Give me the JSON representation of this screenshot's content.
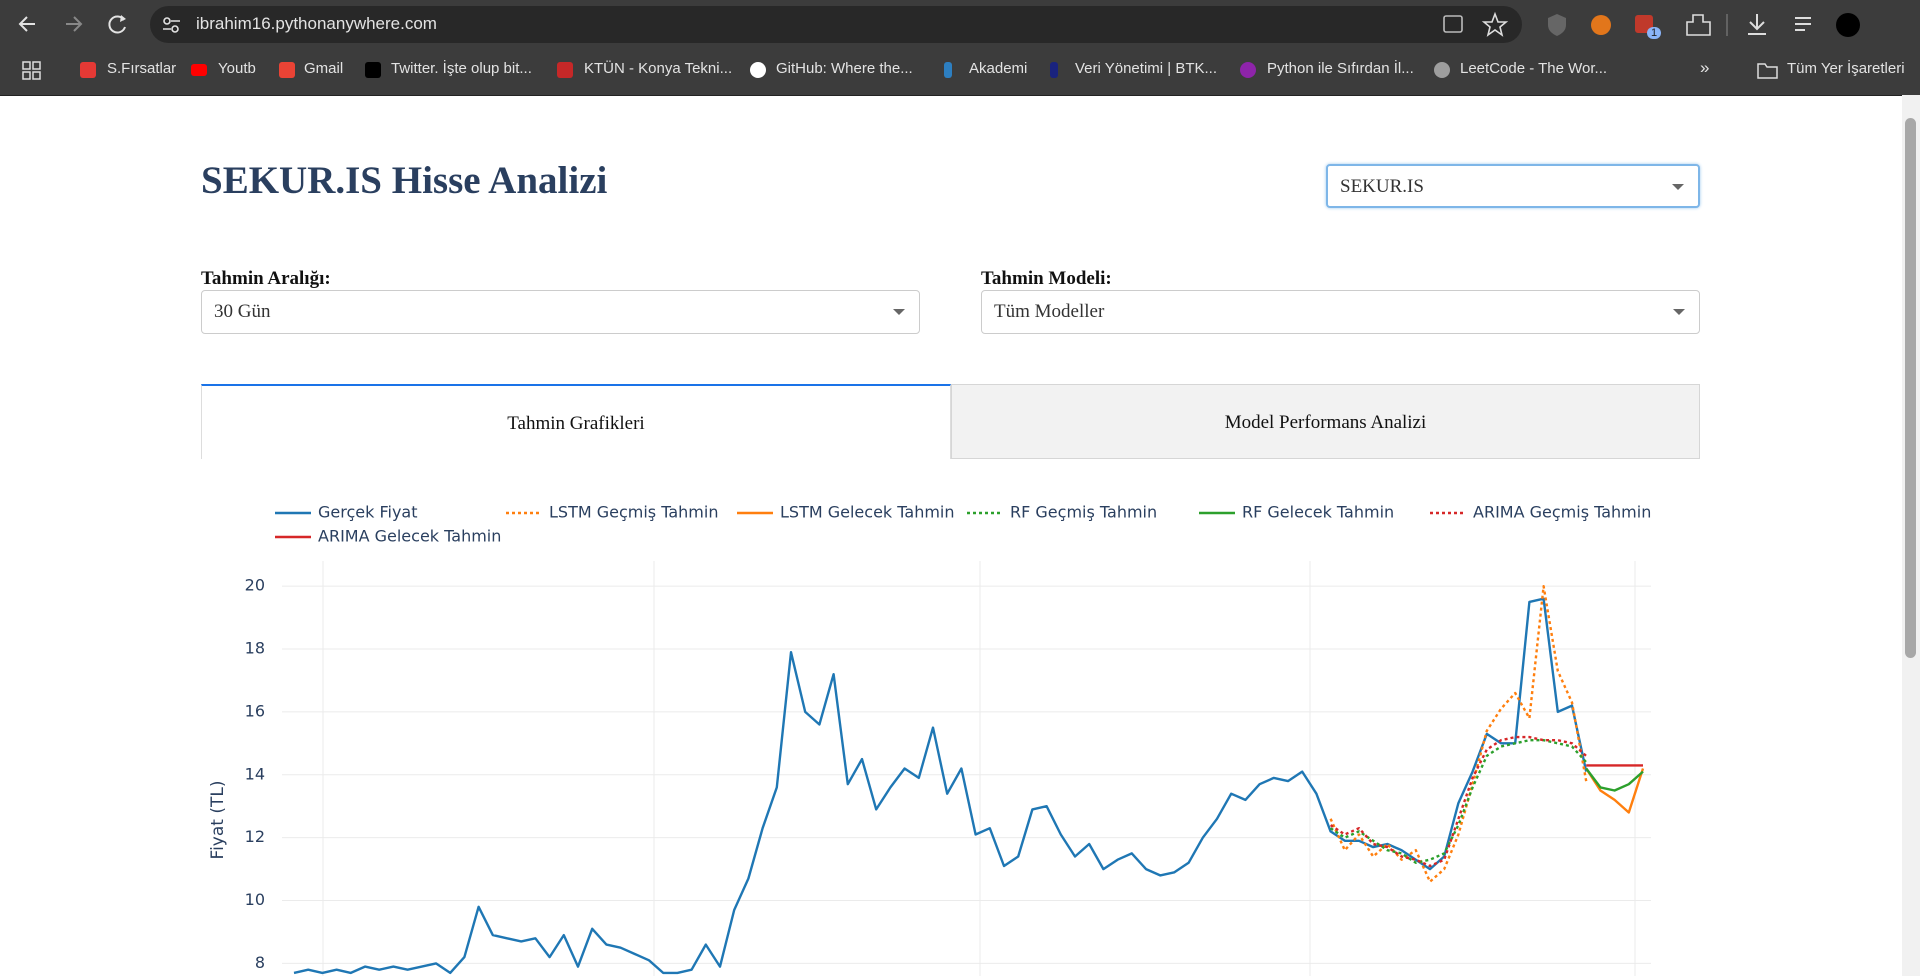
{
  "browser": {
    "url": "ibrahim16.pythonanywhere.com",
    "bookmarks": [
      "S.Fırsatlar",
      "Youtb",
      "Gmail",
      "Twitter. İşte olup bit...",
      "KTÜN - Konya Tekni...",
      "GitHub: Where the...",
      "Akademi",
      "Veri Yönetimi | BTK...",
      "Python ile Sıfırdan İl...",
      "LeetCode - The Wor..."
    ],
    "all_bookmarks": "Tüm Yer İşaretleri",
    "extension_badge": "1"
  },
  "header": {
    "title": "SEKUR.IS Hisse Analizi",
    "stock_select": "SEKUR.IS"
  },
  "controls": {
    "range_label": "Tahmin Aralığı:",
    "range_value": "30 Gün",
    "model_label": "Tahmin Modeli:",
    "model_value": "Tüm Modeller"
  },
  "tabs": [
    "Tahmin Grafikleri",
    "Model Performans Analizi"
  ],
  "chart_data": {
    "type": "line",
    "y_label": "Fiyat (TL)",
    "ylim": [
      7.6,
      20.8
    ],
    "yticks": [
      8,
      10,
      12,
      14,
      16,
      18,
      20
    ],
    "grid": true,
    "legend": "top",
    "categories": [
      null,
      null,
      null,
      null,
      null,
      null,
      null,
      null,
      null,
      null,
      null,
      null,
      null,
      null,
      null,
      null,
      null,
      null,
      null,
      null,
      null,
      null,
      null,
      null,
      null,
      null,
      null,
      null,
      null,
      null,
      null,
      null,
      null,
      null,
      null,
      null,
      null,
      null,
      null,
      null,
      null,
      null,
      null,
      null,
      null,
      null,
      null,
      null,
      null,
      null,
      null,
      null,
      null,
      null,
      null,
      null,
      null,
      null,
      null,
      null,
      null,
      null,
      null,
      null,
      null,
      null,
      null,
      null,
      null,
      null,
      null,
      null,
      null,
      null,
      null,
      null,
      null,
      null,
      null,
      null,
      null,
      null,
      null,
      null,
      null,
      null,
      null,
      null,
      null,
      null,
      null,
      null,
      null,
      null,
      null,
      null
    ],
    "series": [
      {
        "name": "Gerçek Fiyat",
        "color": "#1f77b4",
        "dash": "solid",
        "values": [
          7.7,
          7.8,
          7.7,
          7.8,
          7.7,
          7.9,
          7.8,
          7.9,
          7.8,
          7.9,
          8.0,
          7.7,
          8.2,
          9.8,
          8.9,
          8.8,
          8.7,
          8.8,
          8.2,
          8.9,
          7.9,
          9.1,
          8.6,
          8.5,
          8.3,
          8.1,
          7.7,
          7.7,
          7.8,
          8.6,
          7.9,
          9.7,
          10.7,
          12.3,
          13.6,
          17.9,
          16.0,
          15.6,
          17.2,
          13.7,
          14.5,
          12.9,
          13.6,
          14.2,
          13.9,
          15.5,
          13.4,
          14.2,
          12.1,
          12.3,
          11.1,
          11.4,
          12.9,
          13.0,
          12.1,
          11.4,
          11.8,
          11.0,
          11.3,
          11.5,
          11.0,
          10.8,
          10.9,
          11.2,
          12.0,
          12.6,
          13.4,
          13.2,
          13.7,
          13.9,
          13.8,
          14.1,
          13.4,
          12.2,
          11.9,
          11.9,
          11.7,
          11.8,
          11.6,
          11.3,
          11.0,
          11.4,
          13.1,
          14.1,
          15.3,
          15.0,
          15.0,
          19.5,
          19.6,
          16.0,
          16.2,
          14.1,
          null,
          null,
          null,
          null
        ]
      },
      {
        "name": "LSTM Geçmiş Tahmin",
        "color": "#ff7f0e",
        "dash": "dot",
        "values": [
          null,
          null,
          null,
          null,
          null,
          null,
          null,
          null,
          null,
          null,
          null,
          null,
          null,
          null,
          null,
          null,
          null,
          null,
          null,
          null,
          null,
          null,
          null,
          null,
          null,
          null,
          null,
          null,
          null,
          null,
          null,
          null,
          null,
          null,
          null,
          null,
          null,
          null,
          null,
          null,
          null,
          null,
          null,
          null,
          null,
          null,
          null,
          null,
          null,
          null,
          null,
          null,
          null,
          null,
          null,
          null,
          null,
          null,
          null,
          null,
          null,
          null,
          null,
          null,
          null,
          null,
          null,
          null,
          null,
          null,
          null,
          null,
          null,
          12.6,
          11.6,
          12.1,
          11.4,
          11.8,
          11.3,
          11.6,
          10.6,
          11.0,
          12.1,
          13.7,
          15.4,
          16.1,
          16.6,
          15.8,
          20.0,
          17.3,
          16.3,
          13.8,
          null,
          null,
          null,
          null
        ]
      },
      {
        "name": "LSTM Gelecek Tahmin",
        "color": "#ff7f0e",
        "dash": "solid",
        "values": [
          null,
          null,
          null,
          null,
          null,
          null,
          null,
          null,
          null,
          null,
          null,
          null,
          null,
          null,
          null,
          null,
          null,
          null,
          null,
          null,
          null,
          null,
          null,
          null,
          null,
          null,
          null,
          null,
          null,
          null,
          null,
          null,
          null,
          null,
          null,
          null,
          null,
          null,
          null,
          null,
          null,
          null,
          null,
          null,
          null,
          null,
          null,
          null,
          null,
          null,
          null,
          null,
          null,
          null,
          null,
          null,
          null,
          null,
          null,
          null,
          null,
          null,
          null,
          null,
          null,
          null,
          null,
          null,
          null,
          null,
          null,
          null,
          null,
          null,
          null,
          null,
          null,
          null,
          null,
          null,
          null,
          null,
          null,
          null,
          null,
          null,
          null,
          null,
          null,
          null,
          null,
          14.2,
          13.5,
          13.2,
          12.8,
          14.2
        ]
      },
      {
        "name": "RF Geçmiş Tahmin",
        "color": "#2ca02c",
        "dash": "dot",
        "values": [
          null,
          null,
          null,
          null,
          null,
          null,
          null,
          null,
          null,
          null,
          null,
          null,
          null,
          null,
          null,
          null,
          null,
          null,
          null,
          null,
          null,
          null,
          null,
          null,
          null,
          null,
          null,
          null,
          null,
          null,
          null,
          null,
          null,
          null,
          null,
          null,
          null,
          null,
          null,
          null,
          null,
          null,
          null,
          null,
          null,
          null,
          null,
          null,
          null,
          null,
          null,
          null,
          null,
          null,
          null,
          null,
          null,
          null,
          null,
          null,
          null,
          null,
          null,
          null,
          null,
          null,
          null,
          null,
          null,
          null,
          null,
          null,
          null,
          12.3,
          12.0,
          12.2,
          11.9,
          11.6,
          11.5,
          11.2,
          11.3,
          11.5,
          12.4,
          13.6,
          14.6,
          14.9,
          15.0,
          15.1,
          15.1,
          15.0,
          14.9,
          14.4,
          null,
          null,
          null,
          null
        ]
      },
      {
        "name": "RF Gelecek Tahmin",
        "color": "#2ca02c",
        "dash": "solid",
        "values": [
          null,
          null,
          null,
          null,
          null,
          null,
          null,
          null,
          null,
          null,
          null,
          null,
          null,
          null,
          null,
          null,
          null,
          null,
          null,
          null,
          null,
          null,
          null,
          null,
          null,
          null,
          null,
          null,
          null,
          null,
          null,
          null,
          null,
          null,
          null,
          null,
          null,
          null,
          null,
          null,
          null,
          null,
          null,
          null,
          null,
          null,
          null,
          null,
          null,
          null,
          null,
          null,
          null,
          null,
          null,
          null,
          null,
          null,
          null,
          null,
          null,
          null,
          null,
          null,
          null,
          null,
          null,
          null,
          null,
          null,
          null,
          null,
          null,
          null,
          null,
          null,
          null,
          null,
          null,
          null,
          null,
          null,
          null,
          null,
          null,
          null,
          null,
          null,
          null,
          null,
          null,
          14.2,
          13.6,
          13.5,
          13.7,
          14.1
        ]
      },
      {
        "name": "ARIMA Geçmiş Tahmin",
        "color": "#d62728",
        "dash": "dot",
        "values": [
          null,
          null,
          null,
          null,
          null,
          null,
          null,
          null,
          null,
          null,
          null,
          null,
          null,
          null,
          null,
          null,
          null,
          null,
          null,
          null,
          null,
          null,
          null,
          null,
          null,
          null,
          null,
          null,
          null,
          null,
          null,
          null,
          null,
          null,
          null,
          null,
          null,
          null,
          null,
          null,
          null,
          null,
          null,
          null,
          null,
          null,
          null,
          null,
          null,
          null,
          null,
          null,
          null,
          null,
          null,
          null,
          null,
          null,
          null,
          null,
          null,
          null,
          null,
          null,
          null,
          null,
          null,
          null,
          null,
          null,
          null,
          null,
          null,
          12.4,
          12.1,
          12.3,
          11.8,
          11.7,
          11.4,
          11.3,
          11.1,
          11.3,
          12.6,
          13.9,
          14.8,
          15.1,
          15.2,
          15.2,
          15.1,
          15.1,
          15.0,
          14.6,
          null,
          null,
          null,
          null
        ]
      },
      {
        "name": "ARIMA Gelecek Tahmin",
        "color": "#d62728",
        "dash": "solid",
        "values": [
          null,
          null,
          null,
          null,
          null,
          null,
          null,
          null,
          null,
          null,
          null,
          null,
          null,
          null,
          null,
          null,
          null,
          null,
          null,
          null,
          null,
          null,
          null,
          null,
          null,
          null,
          null,
          null,
          null,
          null,
          null,
          null,
          null,
          null,
          null,
          null,
          null,
          null,
          null,
          null,
          null,
          null,
          null,
          null,
          null,
          null,
          null,
          null,
          null,
          null,
          null,
          null,
          null,
          null,
          null,
          null,
          null,
          null,
          null,
          null,
          null,
          null,
          null,
          null,
          null,
          null,
          null,
          null,
          null,
          null,
          null,
          null,
          null,
          null,
          null,
          null,
          null,
          null,
          null,
          null,
          null,
          null,
          null,
          null,
          null,
          null,
          null,
          null,
          null,
          null,
          null,
          14.3,
          14.3,
          14.3,
          14.3,
          14.3
        ]
      }
    ]
  }
}
